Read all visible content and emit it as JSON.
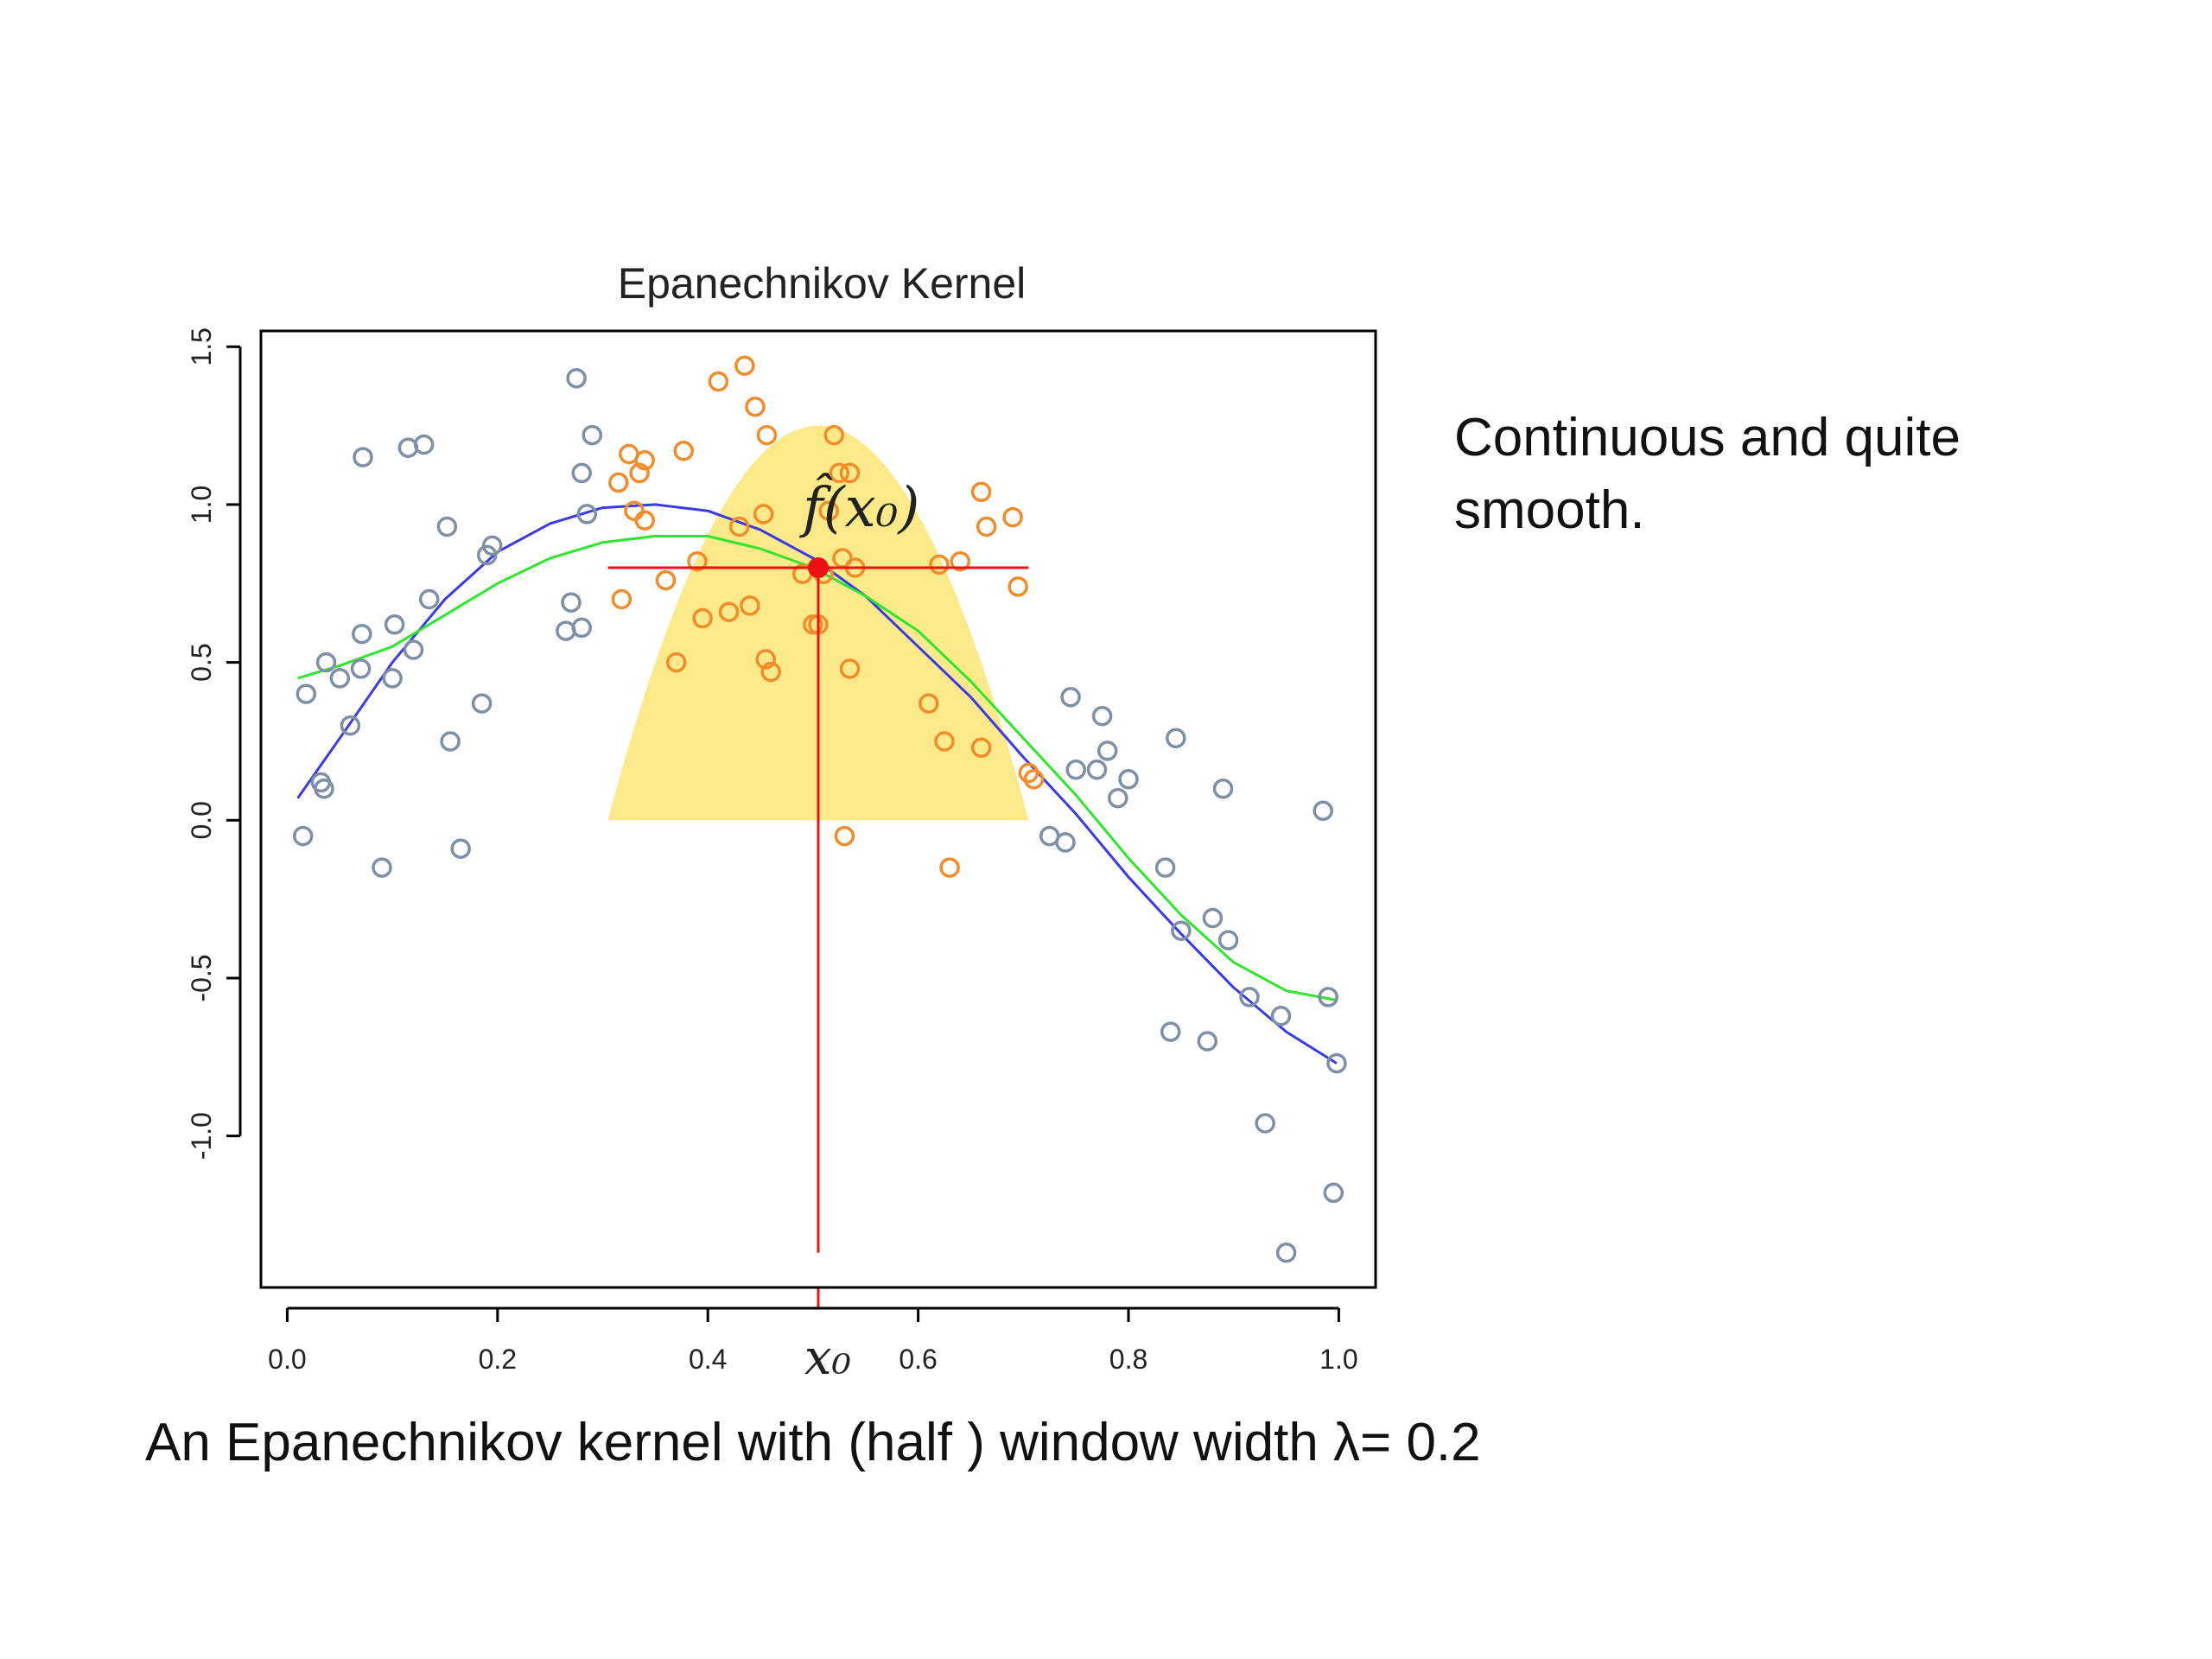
{
  "side_note": "Continuous and quite smooth.",
  "caption": "An Epanechnikov kernel with (half ) window width λ= 0.2",
  "chart_data": {
    "type": "scatter",
    "title": "Epanechnikov Kernel",
    "xlabel": "",
    "ylabel": "",
    "xlim": [
      -0.025,
      1.035
    ],
    "ylim": [
      -1.48,
      1.55
    ],
    "x_ticks": [
      0.0,
      0.2,
      0.4,
      0.6,
      0.8,
      1.0
    ],
    "x_tick_labels": [
      "0.0",
      "0.2",
      "0.4",
      "0.6",
      "0.8",
      "1.0"
    ],
    "y_ticks": [
      -1.0,
      -0.5,
      0.0,
      0.5,
      1.0,
      1.5
    ],
    "y_tick_labels": [
      "-1.0",
      "-0.5",
      "0.0",
      "0.5",
      "1.0",
      "1.5"
    ],
    "grid": false,
    "x0": 0.505,
    "lambda": 0.2,
    "fhat_x0": 0.8,
    "kernel_peak": 1.25,
    "annotation_fhat": "f̂(x₀)",
    "annotation_x0": "x₀",
    "colors": {
      "outside_points": "#7e8fa6",
      "window_points": "#f28c28",
      "kernel_fill": "#fbe98a",
      "true_function": "#3a3ae6",
      "fit": "#2ee62e",
      "marker": "#ee1111"
    },
    "series": [
      {
        "name": "points outside window",
        "x": [
          0.015,
          0.018,
          0.032,
          0.035,
          0.037,
          0.05,
          0.06,
          0.07,
          0.071,
          0.072,
          0.09,
          0.1,
          0.102,
          0.115,
          0.12,
          0.13,
          0.135,
          0.152,
          0.155,
          0.165,
          0.185,
          0.19,
          0.195,
          0.265,
          0.27,
          0.275,
          0.28,
          0.28,
          0.285,
          0.29,
          0.725,
          0.74,
          0.745,
          0.75,
          0.77,
          0.775,
          0.78,
          0.79,
          0.8,
          0.835,
          0.84,
          0.845,
          0.85,
          0.875,
          0.88,
          0.89,
          0.895,
          0.915,
          0.93,
          0.945,
          0.95,
          0.985,
          0.99,
          0.995,
          0.998
        ],
        "y": [
          -0.05,
          0.4,
          0.12,
          0.1,
          0.5,
          0.45,
          0.3,
          0.48,
          0.59,
          1.15,
          -0.15,
          0.45,
          0.62,
          1.18,
          0.54,
          1.19,
          0.7,
          0.93,
          0.25,
          -0.09,
          0.37,
          0.84,
          0.87,
          0.6,
          0.69,
          1.4,
          0.61,
          1.1,
          0.97,
          1.22,
          -0.05,
          -0.07,
          0.39,
          0.16,
          0.16,
          0.33,
          0.22,
          0.07,
          0.13,
          -0.15,
          -0.67,
          0.26,
          -0.35,
          -0.7,
          -0.31,
          0.1,
          -0.38,
          -0.56,
          -0.96,
          -0.62,
          -1.37,
          0.03,
          -0.56,
          -1.18,
          -0.77
        ]
      },
      {
        "name": "points inside window",
        "x": [
          0.315,
          0.318,
          0.325,
          0.33,
          0.335,
          0.34,
          0.34,
          0.36,
          0.37,
          0.377,
          0.39,
          0.395,
          0.41,
          0.42,
          0.435,
          0.43,
          0.44,
          0.445,
          0.453,
          0.455,
          0.456,
          0.46,
          0.49,
          0.5,
          0.505,
          0.51,
          0.515,
          0.52,
          0.525,
          0.528,
          0.53,
          0.535,
          0.535,
          0.54,
          0.61,
          0.62,
          0.625,
          0.63,
          0.64,
          0.66,
          0.66,
          0.665,
          0.69,
          0.695,
          0.705,
          0.71
        ],
        "y": [
          1.07,
          0.7,
          1.16,
          0.98,
          1.1,
          0.95,
          1.14,
          0.76,
          0.5,
          1.17,
          0.82,
          0.64,
          1.39,
          0.66,
          1.44,
          0.93,
          0.68,
          1.31,
          0.97,
          0.51,
          1.22,
          0.47,
          0.78,
          0.62,
          0.62,
          0.78,
          0.98,
          1.22,
          1.1,
          0.83,
          -0.05,
          0.48,
          1.1,
          0.8,
          0.37,
          0.81,
          0.25,
          -0.15,
          0.82,
          1.04,
          0.23,
          0.93,
          0.96,
          0.74,
          0.15,
          0.13
        ]
      }
    ],
    "curves": [
      {
        "name": "true function",
        "x": [
          0.01,
          0.05,
          0.1,
          0.15,
          0.2,
          0.25,
          0.3,
          0.35,
          0.4,
          0.45,
          0.5,
          0.55,
          0.6,
          0.65,
          0.7,
          0.75,
          0.8,
          0.85,
          0.9,
          0.95,
          0.998
        ],
        "y": [
          0.07,
          0.26,
          0.5,
          0.7,
          0.85,
          0.94,
          0.99,
          1.0,
          0.98,
          0.92,
          0.83,
          0.71,
          0.55,
          0.39,
          0.2,
          0.02,
          -0.18,
          -0.36,
          -0.53,
          -0.67,
          -0.77
        ]
      },
      {
        "name": "Epanechnikov kernel fit",
        "x": [
          0.01,
          0.05,
          0.1,
          0.15,
          0.2,
          0.25,
          0.3,
          0.35,
          0.4,
          0.45,
          0.5,
          0.55,
          0.6,
          0.65,
          0.7,
          0.75,
          0.8,
          0.85,
          0.9,
          0.95,
          0.998
        ],
        "y": [
          0.45,
          0.49,
          0.55,
          0.65,
          0.75,
          0.83,
          0.88,
          0.9,
          0.9,
          0.86,
          0.8,
          0.71,
          0.6,
          0.44,
          0.26,
          0.08,
          -0.12,
          -0.3,
          -0.45,
          -0.54,
          -0.57
        ]
      }
    ]
  }
}
